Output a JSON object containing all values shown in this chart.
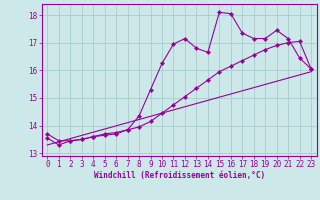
{
  "xlabel": "Windchill (Refroidissement éolien,°C)",
  "bg_color": "#cce8e8",
  "grid_color": "#aacccc",
  "line_color": "#990099",
  "spine_color": "#990099",
  "xlim": [
    -0.5,
    23.5
  ],
  "ylim": [
    12.9,
    18.4
  ],
  "yticks": [
    13,
    14,
    15,
    16,
    17,
    18
  ],
  "xticks": [
    0,
    1,
    2,
    3,
    4,
    5,
    6,
    7,
    8,
    9,
    10,
    11,
    12,
    13,
    14,
    15,
    16,
    17,
    18,
    19,
    20,
    21,
    22,
    23
  ],
  "series1_x": [
    0,
    1,
    2,
    3,
    4,
    5,
    6,
    7,
    8,
    9,
    10,
    11,
    12,
    13,
    14,
    15,
    16,
    17,
    18,
    19,
    20,
    21,
    22,
    23
  ],
  "series1_y": [
    13.7,
    13.45,
    13.45,
    13.5,
    13.6,
    13.7,
    13.75,
    13.85,
    14.35,
    15.3,
    16.25,
    16.95,
    17.15,
    16.8,
    16.65,
    18.1,
    18.05,
    17.35,
    17.15,
    17.15,
    17.45,
    17.15,
    16.45,
    16.05
  ],
  "series2_x": [
    0,
    1,
    2,
    3,
    4,
    5,
    6,
    7,
    8,
    9,
    10,
    11,
    12,
    13,
    14,
    15,
    16,
    17,
    18,
    19,
    20,
    21,
    22,
    23
  ],
  "series2_y": [
    13.55,
    13.3,
    13.45,
    13.5,
    13.6,
    13.65,
    13.7,
    13.85,
    13.95,
    14.15,
    14.45,
    14.75,
    15.05,
    15.35,
    15.65,
    15.95,
    16.15,
    16.35,
    16.55,
    16.75,
    16.9,
    17.0,
    17.05,
    16.05
  ],
  "series3_x": [
    0,
    23
  ],
  "series3_y": [
    13.3,
    15.95
  ],
  "tick_fontsize": 5.5,
  "xlabel_fontsize": 5.5
}
